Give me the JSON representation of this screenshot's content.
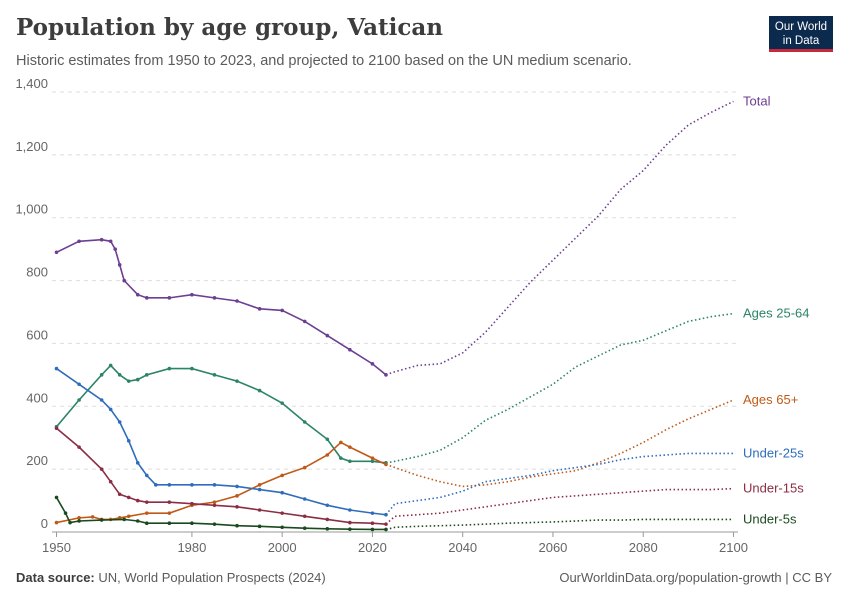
{
  "header": {
    "title": "Population by age group, Vatican",
    "subtitle": "Historic estimates from 1950 to 2023, and projected to 2100 based on the UN medium scenario."
  },
  "logo": {
    "line1": "Our World",
    "line2": "in Data",
    "bg": "#0c2a4e",
    "accent": "#c6283e"
  },
  "footer": {
    "source_label": "Data source:",
    "source_text": "UN, World Population Prospects (2024)",
    "url": "OurWorldinData.org/population-growth | CC BY"
  },
  "chart_data": {
    "type": "line",
    "title": "Population by age group, Vatican",
    "xlabel": "",
    "ylabel": "",
    "xlim": [
      1949,
      2101
    ],
    "ylim": [
      0,
      1400
    ],
    "yticks": [
      0,
      200,
      400,
      600,
      800,
      1000,
      1200,
      1400
    ],
    "ytick_labels": [
      "0",
      "200",
      "400",
      "600",
      "800",
      "1,000",
      "1,200",
      "1,400"
    ],
    "xticks": [
      1950,
      1980,
      2000,
      2020,
      2040,
      2060,
      2080,
      2100
    ],
    "xtick_labels": [
      "1950",
      "1980",
      "2000",
      "2020",
      "2040",
      "2060",
      "2080",
      "2100"
    ],
    "grid": "horizontal dashed",
    "historic_end": 2023,
    "series": [
      {
        "name": "Total",
        "color": "#6d3e91",
        "x": [
          1950,
          1955,
          1960,
          1962,
          1963,
          1964,
          1965,
          1968,
          1970,
          1975,
          1980,
          1985,
          1990,
          1995,
          2000,
          2005,
          2010,
          2015,
          2020,
          2023,
          2025,
          2030,
          2035,
          2040,
          2045,
          2050,
          2055,
          2060,
          2065,
          2070,
          2075,
          2080,
          2085,
          2090,
          2095,
          2100
        ],
        "y": [
          890,
          925,
          930,
          925,
          900,
          850,
          800,
          755,
          745,
          745,
          755,
          745,
          735,
          710,
          705,
          670,
          625,
          580,
          535,
          500,
          510,
          530,
          535,
          570,
          635,
          715,
          795,
          865,
          935,
          1005,
          1090,
          1150,
          1230,
          1295,
          1335,
          1370
        ]
      },
      {
        "name": "Ages 25-64",
        "color": "#2b8465",
        "x": [
          1950,
          1955,
          1960,
          1962,
          1964,
          1966,
          1968,
          1970,
          1975,
          1980,
          1985,
          1990,
          1995,
          2000,
          2005,
          2010,
          2013,
          2015,
          2020,
          2023,
          2025,
          2030,
          2035,
          2040,
          2045,
          2050,
          2055,
          2060,
          2065,
          2070,
          2075,
          2080,
          2085,
          2090,
          2095,
          2100
        ],
        "y": [
          335,
          420,
          500,
          530,
          500,
          480,
          485,
          500,
          520,
          520,
          500,
          480,
          450,
          410,
          350,
          295,
          235,
          225,
          225,
          220,
          225,
          240,
          260,
          300,
          355,
          390,
          430,
          470,
          525,
          560,
          595,
          610,
          640,
          670,
          685,
          695
        ]
      },
      {
        "name": "Ages 65+",
        "color": "#c05917",
        "x": [
          1950,
          1955,
          1958,
          1960,
          1962,
          1964,
          1966,
          1970,
          1975,
          1980,
          1985,
          1990,
          1995,
          2000,
          2005,
          2010,
          2013,
          2015,
          2020,
          2023,
          2025,
          2030,
          2035,
          2040,
          2045,
          2050,
          2055,
          2060,
          2065,
          2070,
          2075,
          2080,
          2085,
          2090,
          2095,
          2100
        ],
        "y": [
          30,
          45,
          48,
          40,
          40,
          45,
          50,
          60,
          60,
          85,
          95,
          115,
          150,
          180,
          205,
          245,
          285,
          270,
          235,
          215,
          205,
          180,
          160,
          145,
          150,
          160,
          175,
          185,
          195,
          220,
          250,
          285,
          325,
          360,
          390,
          420
        ]
      },
      {
        "name": "Under-25s",
        "color": "#2f6dbc",
        "x": [
          1950,
          1955,
          1960,
          1962,
          1964,
          1966,
          1968,
          1970,
          1972,
          1975,
          1980,
          1985,
          1990,
          1995,
          2000,
          2005,
          2010,
          2015,
          2020,
          2023,
          2025,
          2030,
          2035,
          2040,
          2045,
          2050,
          2055,
          2060,
          2065,
          2070,
          2075,
          2080,
          2085,
          2090,
          2095,
          2100
        ],
        "y": [
          520,
          470,
          420,
          390,
          350,
          290,
          220,
          180,
          150,
          150,
          150,
          150,
          145,
          135,
          125,
          105,
          85,
          70,
          60,
          55,
          90,
          100,
          110,
          130,
          160,
          170,
          180,
          195,
          205,
          215,
          230,
          240,
          245,
          250,
          250,
          250
        ]
      },
      {
        "name": "Under-15s",
        "color": "#8a2e45",
        "x": [
          1950,
          1955,
          1960,
          1962,
          1964,
          1966,
          1968,
          1970,
          1975,
          1980,
          1985,
          1990,
          1995,
          2000,
          2005,
          2010,
          2015,
          2020,
          2023,
          2025,
          2030,
          2035,
          2040,
          2045,
          2050,
          2055,
          2060,
          2065,
          2070,
          2075,
          2080,
          2085,
          2090,
          2095,
          2100
        ],
        "y": [
          330,
          270,
          200,
          160,
          120,
          110,
          100,
          95,
          95,
          90,
          85,
          80,
          70,
          60,
          50,
          40,
          30,
          28,
          25,
          50,
          55,
          60,
          70,
          80,
          90,
          100,
          110,
          115,
          120,
          125,
          130,
          135,
          135,
          135,
          138
        ]
      },
      {
        "name": "Under-5s",
        "color": "#1b4a1f",
        "x": [
          1950,
          1952,
          1953,
          1955,
          1960,
          1965,
          1968,
          1970,
          1975,
          1980,
          1985,
          1990,
          1995,
          2000,
          2005,
          2010,
          2015,
          2020,
          2023,
          2025,
          2030,
          2035,
          2040,
          2045,
          2050,
          2055,
          2060,
          2065,
          2070,
          2075,
          2080,
          2085,
          2090,
          2095,
          2100
        ],
        "y": [
          110,
          60,
          30,
          35,
          38,
          40,
          35,
          28,
          28,
          28,
          25,
          20,
          18,
          15,
          12,
          10,
          9,
          8,
          8,
          15,
          18,
          20,
          22,
          25,
          28,
          30,
          32,
          35,
          38,
          38,
          40,
          40,
          40,
          40,
          40
        ]
      }
    ]
  }
}
